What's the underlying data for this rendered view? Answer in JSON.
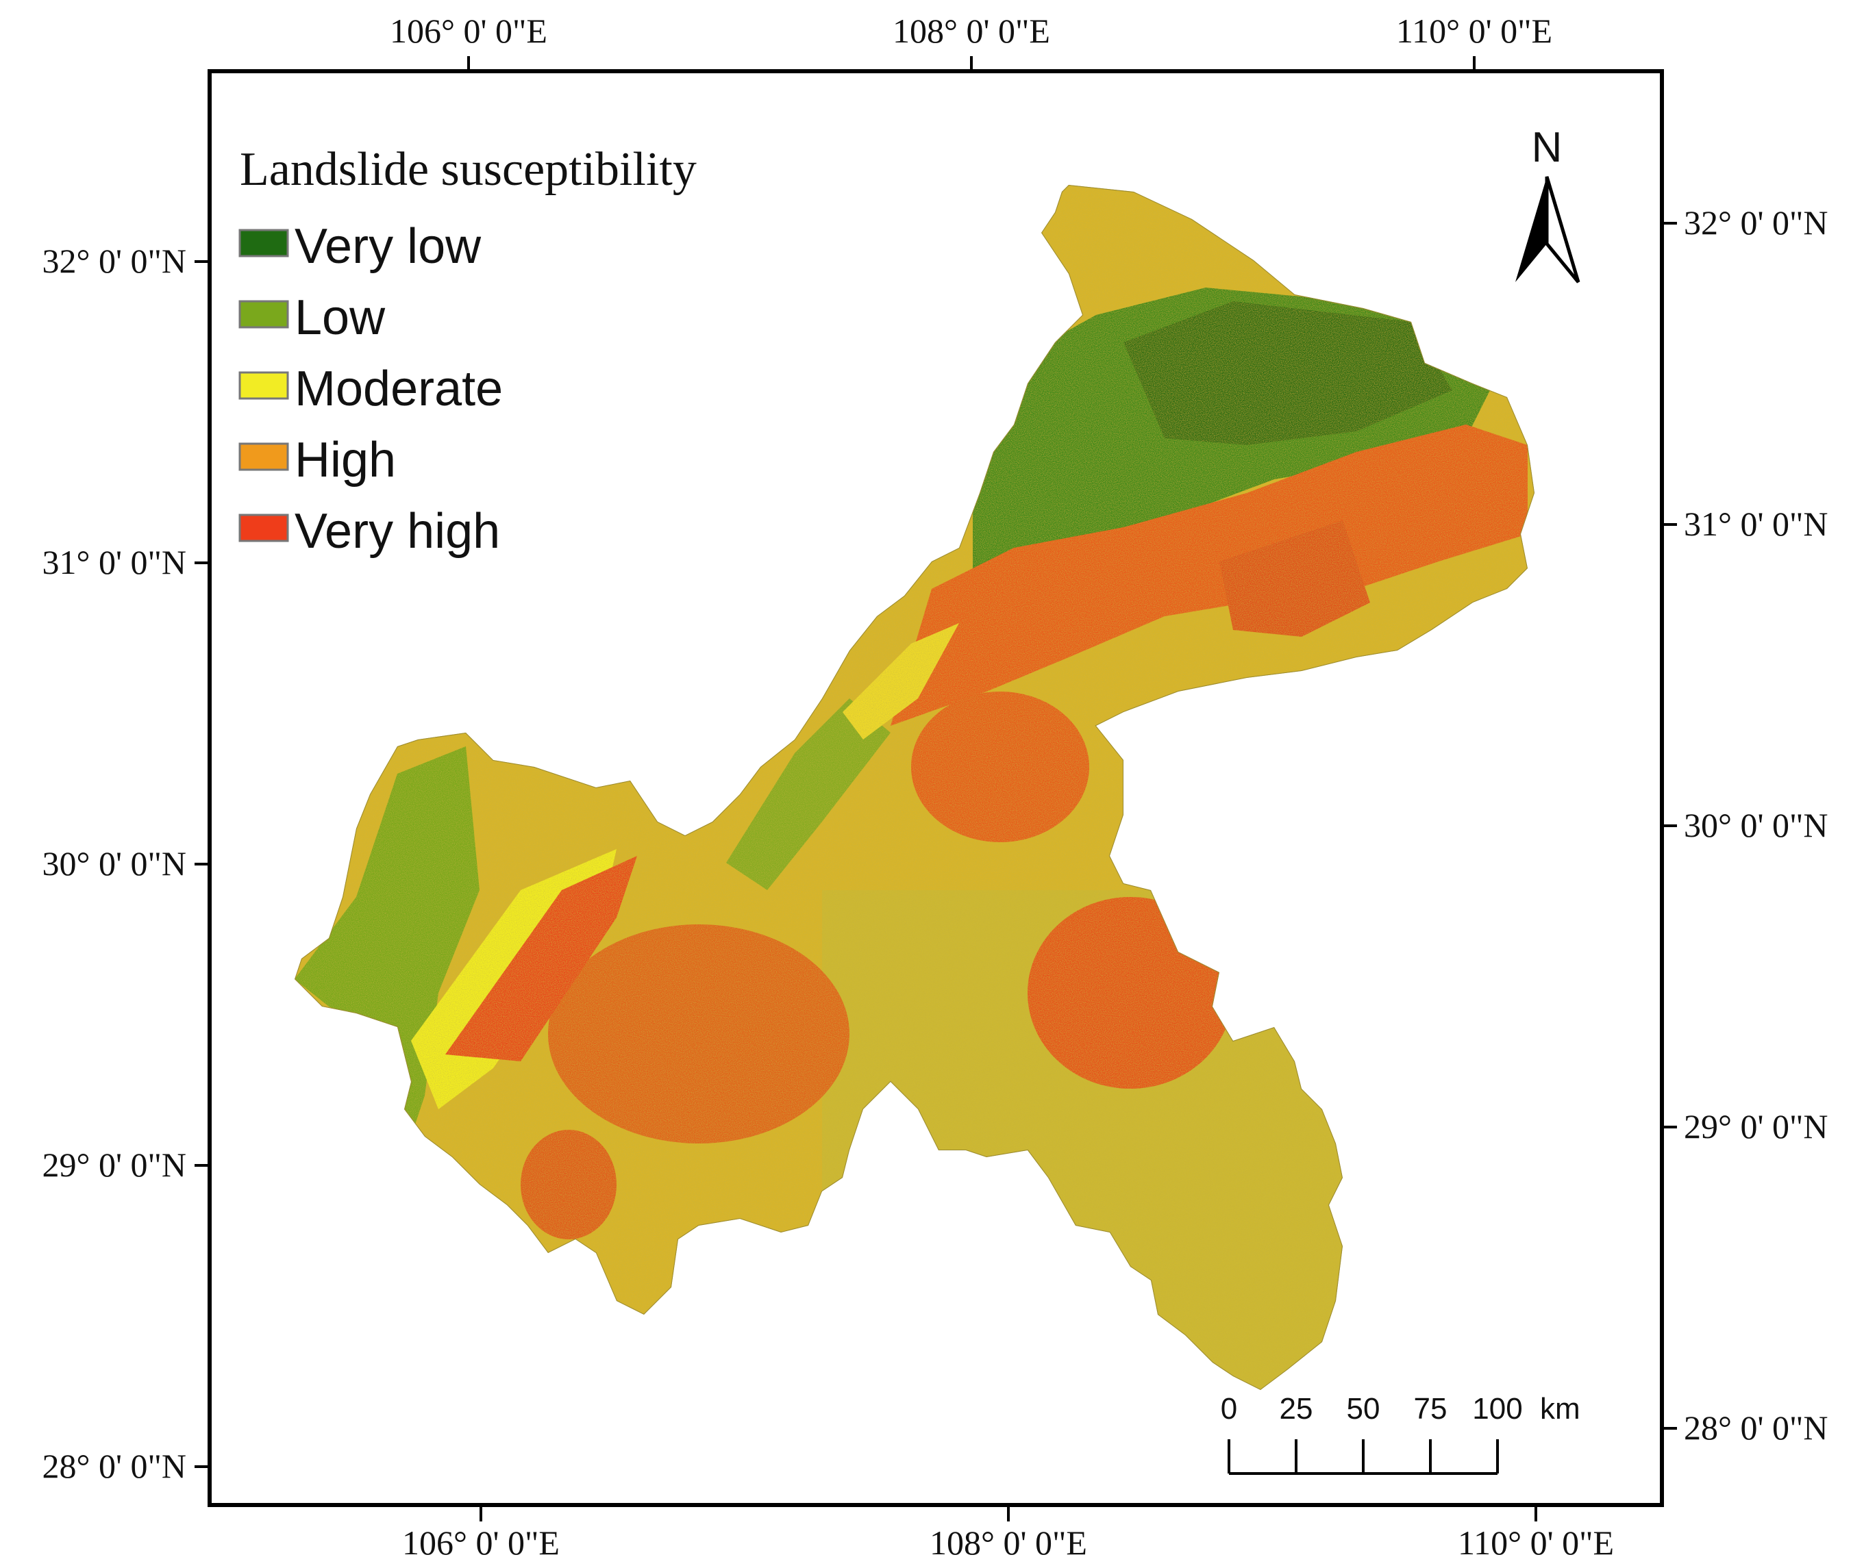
{
  "legend": {
    "title": "Landslide susceptibility",
    "classes": [
      {
        "label": "Very low",
        "color": "#1f6b12"
      },
      {
        "label": "Low",
        "color": "#7aa81c"
      },
      {
        "label": "Moderate",
        "color": "#f2ec24"
      },
      {
        "label": "High",
        "color": "#f09a1c"
      },
      {
        "label": "Very high",
        "color": "#ef3d1a"
      }
    ]
  },
  "north_arrow": {
    "label": "N"
  },
  "axes": {
    "top_lon_labels": [
      "106° 0' 0\"E",
      "108° 0' 0\"E",
      "110° 0' 0\"E"
    ],
    "bottom_lon_labels": [
      "106° 0' 0\"E",
      "108° 0' 0\"E",
      "110° 0' 0\"E"
    ],
    "left_lat_labels": [
      "32° 0' 0\"N",
      "31° 0' 0\"N",
      "30° 0' 0\"N",
      "29° 0' 0\"N",
      "28° 0' 0\"N"
    ],
    "right_lat_labels": [
      "32° 0' 0\"N",
      "31° 0' 0\"N",
      "30° 0' 0\"N",
      "29° 0' 0\"N",
      "28° 0' 0\"N"
    ]
  },
  "scale_bar": {
    "ticks": [
      "0",
      "25",
      "50",
      "75",
      "100"
    ],
    "unit": "km"
  },
  "colors": {
    "frame": "#000000",
    "background": "#ffffff"
  }
}
